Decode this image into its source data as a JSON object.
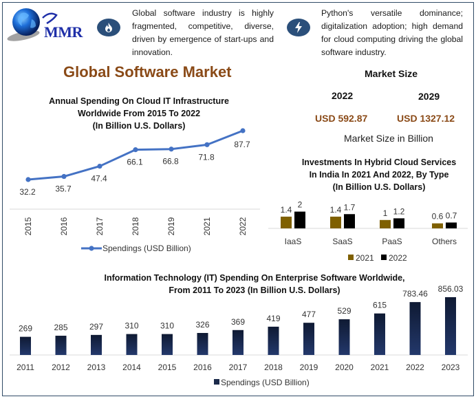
{
  "brand": {
    "logo_text": "MMR"
  },
  "facts": [
    {
      "icon": "fire-icon",
      "text": "Global software industry is highly fragmented, competitive, diverse, driven by emergence of start-ups and innovation."
    },
    {
      "icon": "lightning-icon",
      "text": "Python's versatile dominance; digitalization adoption; high demand for cloud computing driving the global software industry."
    }
  ],
  "main_title": "Global Software Market",
  "market_size": {
    "title": "Market Size",
    "years": [
      "2022",
      "2029"
    ],
    "values": [
      "USD 592.87",
      "USD 1327.12"
    ],
    "subtitle": "Market Size in Billion"
  },
  "colors": {
    "line": "#4472c4",
    "bar2021": "#7f6000",
    "bar2022": "#000000",
    "barDark": "#1b2a4a",
    "accent": "#8a4a17",
    "iconBg": "#2b4f7a"
  },
  "chart_data": [
    {
      "type": "line",
      "title": "Annual Spending On Cloud IT Infrastructure Worldwide From 2015 To 2022 (In Billion U.S. Dollars)",
      "title_lines": [
        "Annual Spending On Cloud IT Infrastructure",
        "Worldwide From 2015 To 2022",
        "(In Billion U.S. Dollars)"
      ],
      "categories": [
        "2015",
        "2016",
        "2017",
        "2018",
        "2019",
        "2021",
        "2022"
      ],
      "series": [
        {
          "name": "Spendings (USD Billion)",
          "values": [
            32.2,
            35.7,
            47.4,
            66.1,
            66.8,
            71.8,
            87.7
          ]
        }
      ],
      "xlabel": "",
      "ylabel": "",
      "ylim": [
        0,
        100
      ],
      "grid": false,
      "legend": "bottom"
    },
    {
      "type": "bar",
      "title": "Investments In Hybrid Cloud Services In India In 2021 And 2022, By Type (In Billion U.S. Dollars)",
      "title_lines": [
        "Investments In Hybrid Cloud Services",
        "In India In 2021 And 2022, By Type",
        "(In Billion U.S. Dollars)"
      ],
      "categories": [
        "IaaS",
        "SaaS",
        "PaaS",
        "Others"
      ],
      "series": [
        {
          "name": "2021",
          "values": [
            1.4,
            1.4,
            1,
            0.6
          ]
        },
        {
          "name": "2022",
          "values": [
            2,
            1.7,
            1.2,
            0.7
          ]
        }
      ],
      "value_labels": [
        [
          "1.4",
          "1.4",
          "1",
          "0.6"
        ],
        [
          "2",
          "1.7",
          "1.2",
          "0.7"
        ]
      ],
      "ylim": [
        0,
        2.4
      ],
      "grid": false,
      "legend": "bottom"
    },
    {
      "type": "bar",
      "title": "Information Technology (IT) Spending On Enterprise Software Worldwide, From 2011 To 2023 (In Billion U.S. Dollars)",
      "title_lines": [
        "Information Technology (IT) Spending On Enterprise Software Worldwide,",
        "From 2011 To 2023 (In Billion U.S. Dollars)"
      ],
      "categories": [
        "2011",
        "2012",
        "2013",
        "2014",
        "2015",
        "2016",
        "2017",
        "2018",
        "2019",
        "2020",
        "2021",
        "2022",
        "2023"
      ],
      "series": [
        {
          "name": "Spendings (USD Billion)",
          "values": [
            269,
            285,
            297,
            310,
            310,
            326,
            369,
            419,
            477,
            529,
            615,
            783.46,
            856.03
          ]
        }
      ],
      "value_labels": [
        "269",
        "285",
        "297",
        "310",
        "310",
        "326",
        "369",
        "419",
        "477",
        "529",
        "615",
        "783.46",
        "856.03"
      ],
      "ylim": [
        0,
        900
      ],
      "grid": false,
      "legend": "bottom"
    }
  ]
}
